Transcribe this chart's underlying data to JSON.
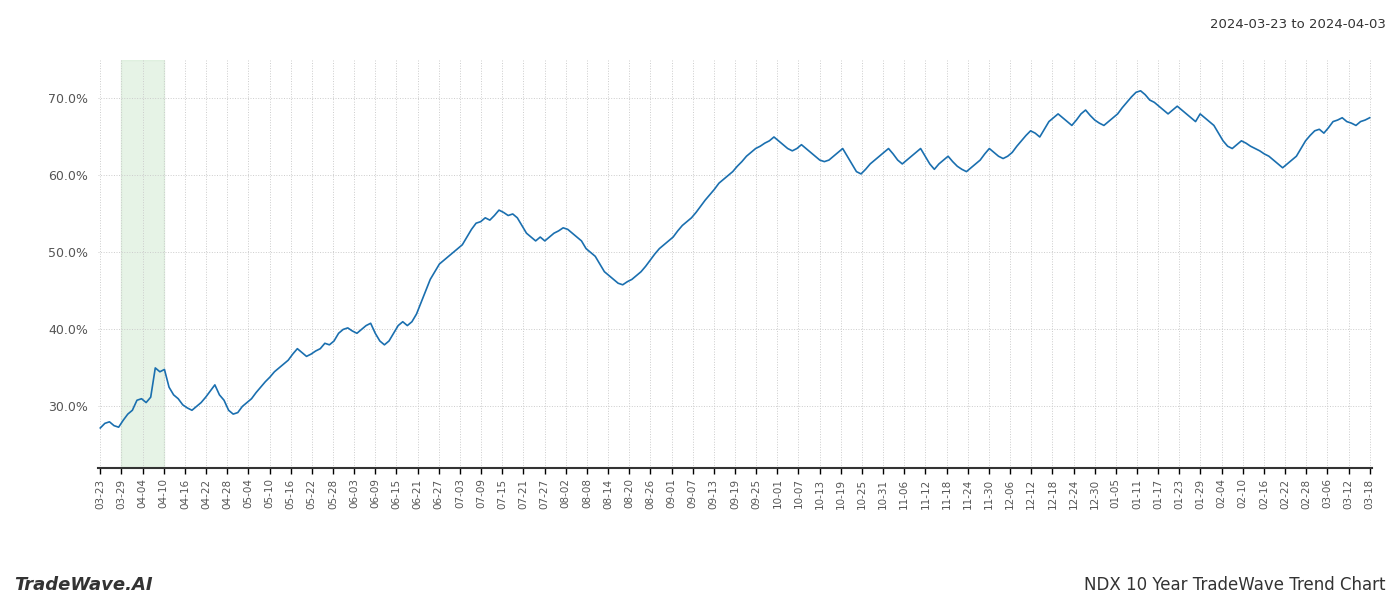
{
  "title_top_right": "2024-03-23 to 2024-04-03",
  "footer_left": "TradeWave.AI",
  "footer_right": "NDX 10 Year TradeWave Trend Chart",
  "line_color": "#1a6faf",
  "line_width": 1.2,
  "shade_color": "#c8e6c9",
  "shade_alpha": 0.45,
  "ylim": [
    22,
    75
  ],
  "yticks": [
    30,
    40,
    50,
    60,
    70
  ],
  "background_color": "#ffffff",
  "grid_color": "#cccccc",
  "grid_style": "dotted",
  "x_labels": [
    "03-23",
    "03-29",
    "04-04",
    "04-10",
    "04-16",
    "04-22",
    "04-28",
    "05-04",
    "05-10",
    "05-16",
    "05-22",
    "05-28",
    "06-03",
    "06-09",
    "06-15",
    "06-21",
    "06-27",
    "07-03",
    "07-09",
    "07-15",
    "07-21",
    "07-27",
    "08-02",
    "08-08",
    "08-14",
    "08-20",
    "08-26",
    "09-01",
    "09-07",
    "09-13",
    "09-19",
    "09-25",
    "10-01",
    "10-07",
    "10-13",
    "10-19",
    "10-25",
    "10-31",
    "11-06",
    "11-12",
    "11-18",
    "11-24",
    "11-30",
    "12-06",
    "12-12",
    "12-18",
    "12-24",
    "12-30",
    "01-05",
    "01-11",
    "01-17",
    "01-23",
    "01-29",
    "02-04",
    "02-10",
    "02-16",
    "02-22",
    "02-28",
    "03-06",
    "03-12",
    "03-18"
  ],
  "y_values": [
    27.2,
    27.8,
    28.0,
    27.5,
    27.3,
    28.2,
    29.0,
    29.5,
    30.8,
    31.0,
    30.5,
    31.2,
    35.0,
    34.5,
    34.8,
    32.5,
    31.5,
    31.0,
    30.2,
    29.8,
    29.5,
    30.0,
    30.5,
    31.2,
    32.0,
    32.8,
    31.5,
    30.8,
    29.5,
    29.0,
    29.2,
    30.0,
    30.5,
    31.0,
    31.8,
    32.5,
    33.2,
    33.8,
    34.5,
    35.0,
    35.5,
    36.0,
    36.8,
    37.5,
    37.0,
    36.5,
    36.8,
    37.2,
    37.5,
    38.2,
    38.0,
    38.5,
    39.5,
    40.0,
    40.2,
    39.8,
    39.5,
    40.0,
    40.5,
    40.8,
    39.5,
    38.5,
    38.0,
    38.5,
    39.5,
    40.5,
    41.0,
    40.5,
    41.0,
    42.0,
    43.5,
    45.0,
    46.5,
    47.5,
    48.5,
    49.0,
    49.5,
    50.0,
    50.5,
    51.0,
    52.0,
    53.0,
    53.8,
    54.0,
    54.5,
    54.2,
    54.8,
    55.5,
    55.2,
    54.8,
    55.0,
    54.5,
    53.5,
    52.5,
    52.0,
    51.5,
    52.0,
    51.5,
    52.0,
    52.5,
    52.8,
    53.2,
    53.0,
    52.5,
    52.0,
    51.5,
    50.5,
    50.0,
    49.5,
    48.5,
    47.5,
    47.0,
    46.5,
    46.0,
    45.8,
    46.2,
    46.5,
    47.0,
    47.5,
    48.2,
    49.0,
    49.8,
    50.5,
    51.0,
    51.5,
    52.0,
    52.8,
    53.5,
    54.0,
    54.5,
    55.2,
    56.0,
    56.8,
    57.5,
    58.2,
    59.0,
    59.5,
    60.0,
    60.5,
    61.2,
    61.8,
    62.5,
    63.0,
    63.5,
    63.8,
    64.2,
    64.5,
    65.0,
    64.5,
    64.0,
    63.5,
    63.2,
    63.5,
    64.0,
    63.5,
    63.0,
    62.5,
    62.0,
    61.8,
    62.0,
    62.5,
    63.0,
    63.5,
    62.5,
    61.5,
    60.5,
    60.2,
    60.8,
    61.5,
    62.0,
    62.5,
    63.0,
    63.5,
    62.8,
    62.0,
    61.5,
    62.0,
    62.5,
    63.0,
    63.5,
    62.5,
    61.5,
    60.8,
    61.5,
    62.0,
    62.5,
    61.8,
    61.2,
    60.8,
    60.5,
    61.0,
    61.5,
    62.0,
    62.8,
    63.5,
    63.0,
    62.5,
    62.2,
    62.5,
    63.0,
    63.8,
    64.5,
    65.2,
    65.8,
    65.5,
    65.0,
    66.0,
    67.0,
    67.5,
    68.0,
    67.5,
    67.0,
    66.5,
    67.2,
    68.0,
    68.5,
    67.8,
    67.2,
    66.8,
    66.5,
    67.0,
    67.5,
    68.0,
    68.8,
    69.5,
    70.2,
    70.8,
    71.0,
    70.5,
    69.8,
    69.5,
    69.0,
    68.5,
    68.0,
    68.5,
    69.0,
    68.5,
    68.0,
    67.5,
    67.0,
    68.0,
    67.5,
    67.0,
    66.5,
    65.5,
    64.5,
    63.8,
    63.5,
    64.0,
    64.5,
    64.2,
    63.8,
    63.5,
    63.2,
    62.8,
    62.5,
    62.0,
    61.5,
    61.0,
    61.5,
    62.0,
    62.5,
    63.5,
    64.5,
    65.2,
    65.8,
    66.0,
    65.5,
    66.2,
    67.0,
    67.2,
    67.5,
    67.0,
    66.8,
    66.5,
    67.0,
    67.2,
    67.5
  ],
  "shade_x_start_label": "03-29",
  "shade_x_end_label": "04-10"
}
